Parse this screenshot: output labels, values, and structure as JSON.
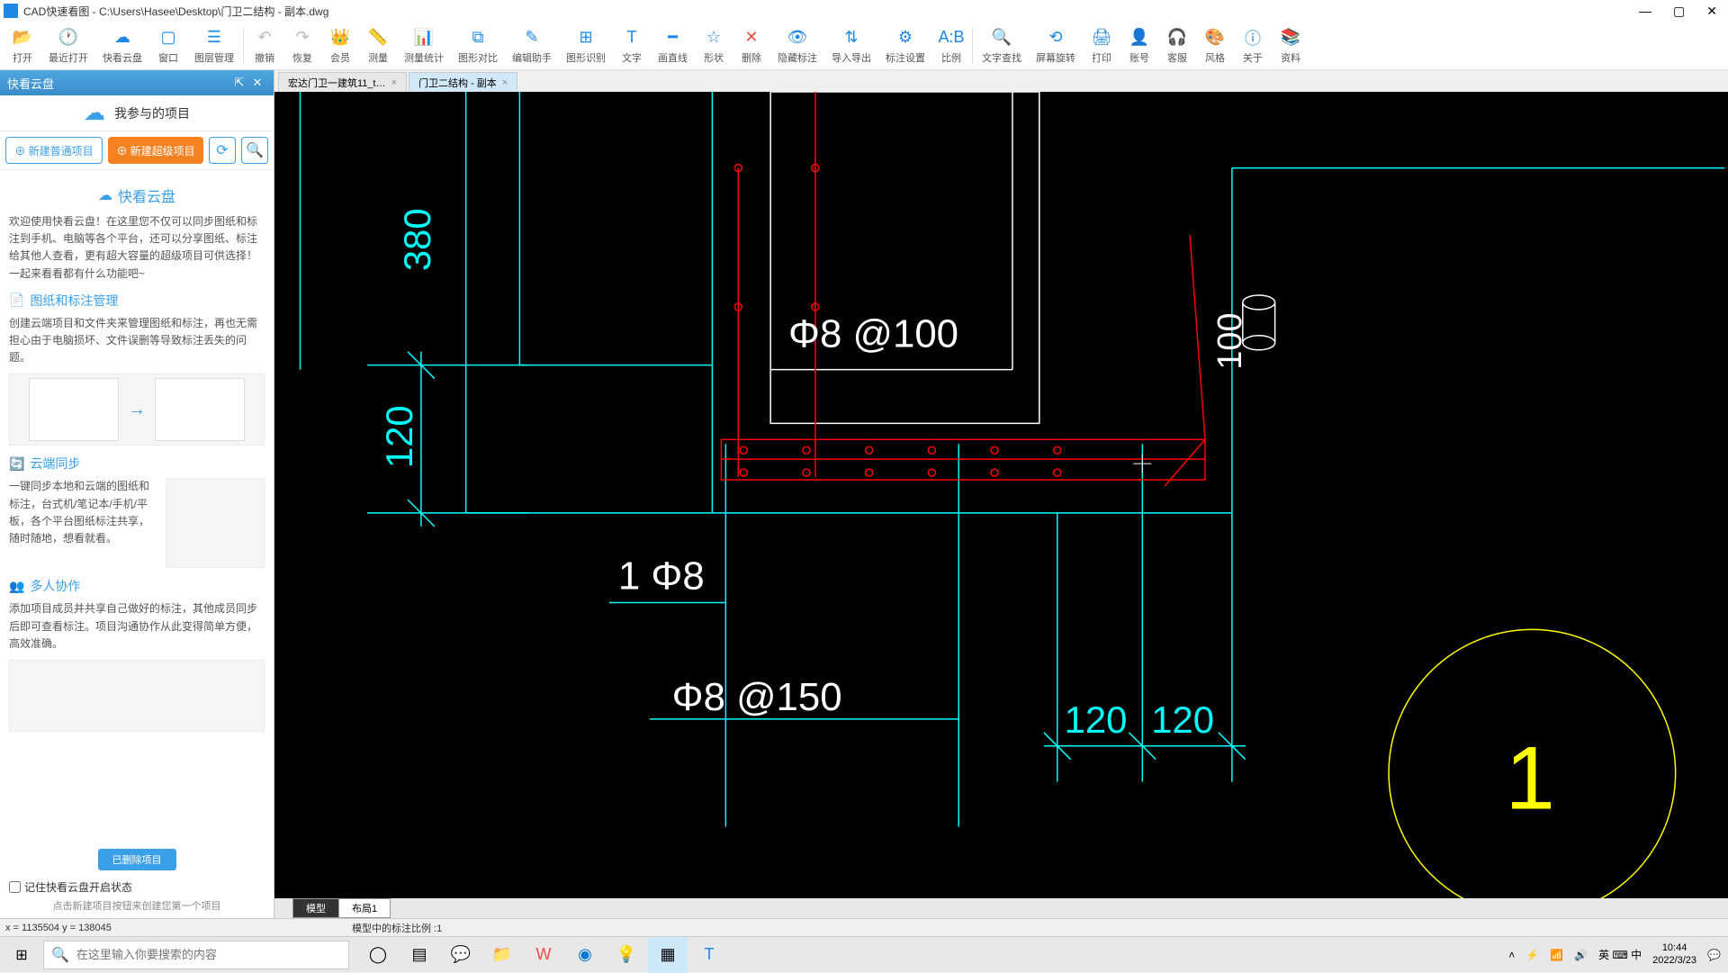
{
  "window": {
    "title": "CAD快速看图 - C:\\Users\\Hasee\\Desktop\\门卫二结构 - 副本.dwg"
  },
  "toolbar": [
    {
      "icon": "📂",
      "color": "#1e88e5",
      "label": "打开"
    },
    {
      "icon": "🕐",
      "color": "#1e88e5",
      "label": "最近打开"
    },
    {
      "icon": "☁",
      "color": "#1e88e5",
      "label": "快看云盘"
    },
    {
      "icon": "▢",
      "color": "#1e88e5",
      "label": "窗口"
    },
    {
      "icon": "☰",
      "color": "#1e88e5",
      "label": "图层管理"
    },
    {
      "sep": true
    },
    {
      "icon": "↶",
      "color": "#bbb",
      "label": "撤销"
    },
    {
      "icon": "↷",
      "color": "#bbb",
      "label": "恢复"
    },
    {
      "icon": "👑",
      "color": "#f5a623",
      "label": "会员"
    },
    {
      "icon": "📏",
      "color": "#1e88e5",
      "label": "测量"
    },
    {
      "icon": "📊",
      "color": "#1e88e5",
      "label": "测量统计"
    },
    {
      "icon": "⧉",
      "color": "#1e88e5",
      "label": "图形对比"
    },
    {
      "icon": "✎",
      "color": "#1e88e5",
      "label": "编辑助手"
    },
    {
      "icon": "⊞",
      "color": "#1e88e5",
      "label": "图形识别"
    },
    {
      "icon": "T",
      "color": "#1e88e5",
      "label": "文字"
    },
    {
      "icon": "━",
      "color": "#1e88e5",
      "label": "画直线"
    },
    {
      "icon": "☆",
      "color": "#1e88e5",
      "label": "形状"
    },
    {
      "icon": "✕",
      "color": "#e74c3c",
      "label": "删除"
    },
    {
      "icon": "👁",
      "color": "#1e88e5",
      "label": "隐藏标注"
    },
    {
      "icon": "⇅",
      "color": "#1e88e5",
      "label": "导入导出"
    },
    {
      "icon": "⚙",
      "color": "#1e88e5",
      "label": "标注设置"
    },
    {
      "icon": "A:B",
      "color": "#1e88e5",
      "label": "比例"
    },
    {
      "sep": true
    },
    {
      "icon": "🔍",
      "color": "#1e88e5",
      "label": "文字查找"
    },
    {
      "icon": "⟲",
      "color": "#1e88e5",
      "label": "屏幕旋转"
    },
    {
      "icon": "🖨",
      "color": "#1e88e5",
      "label": "打印"
    },
    {
      "icon": "👤",
      "color": "#1e88e5",
      "label": "账号"
    },
    {
      "icon": "🎧",
      "color": "#1e88e5",
      "label": "客服"
    },
    {
      "icon": "🎨",
      "color": "#1e88e5",
      "label": "风格"
    },
    {
      "icon": "ⓘ",
      "color": "#1e88e5",
      "label": "关于"
    },
    {
      "icon": "📚",
      "color": "#1e88e5",
      "label": "资料"
    }
  ],
  "sidebar": {
    "header": "快看云盘",
    "project": "我参与的项目",
    "newNormal": "⊕ 新建普通项目",
    "newSuper": "⊕ 新建超级项目",
    "brand": "快看云盘",
    "welcome": "欢迎使用快看云盘！在这里您不仅可以同步图纸和标注到手机、电脑等各个平台，还可以分享图纸、标注给其他人查看，更有超大容量的超级项目可供选择！一起来看看都有什么功能吧~",
    "h1": "图纸和标注管理",
    "t1": "创建云端项目和文件夹来管理图纸和标注，再也无需担心由于电脑损坏、文件误删等导致标注丢失的问题。",
    "h2": "云端同步",
    "t2": "一键同步本地和云端的图纸和标注，台式机/笔记本/手机/平板，各个平台图纸标注共享，随时随地，想看就看。",
    "h3": "多人协作",
    "t3": "添加项目成员并共享自己做好的标注，其他成员同步后即可查看标注。项目沟通协作从此变得简单方便，高效准确。",
    "deleted": "已删除项目",
    "remember": "记住快看云盘开启状态",
    "hint": "点击新建项目按钮来创建您第一个项目"
  },
  "tabs": [
    {
      "label": "宏达门卫一建筑11_t…",
      "active": false
    },
    {
      "label": "门卫二结构 - 副本",
      "active": true
    }
  ],
  "bottomTabs": [
    {
      "label": "模型",
      "active": true
    },
    {
      "label": "布局1",
      "active": false
    }
  ],
  "status": {
    "coords": "x = 1135504  y = 138045",
    "scale": "模型中的标注比例 :1"
  },
  "drawing": {
    "bg": "#000000",
    "cyan": "#00ffff",
    "red": "#ff0000",
    "white": "#ffffff",
    "yellow": "#ffff00",
    "texts": {
      "d380": "380",
      "d120": "120",
      "d100": "100",
      "phi8_100": "Φ8 @100",
      "phi8_150": "Φ8 @150",
      "one_phi8": "1 Φ8",
      "d120a": "120",
      "d120b": "120",
      "detail": "1"
    }
  },
  "taskbar": {
    "searchPlaceholder": "在这里输入你要搜索的内容",
    "time": "10:44",
    "date": "2022/3/23",
    "ime": "英 ⌨ 中"
  }
}
